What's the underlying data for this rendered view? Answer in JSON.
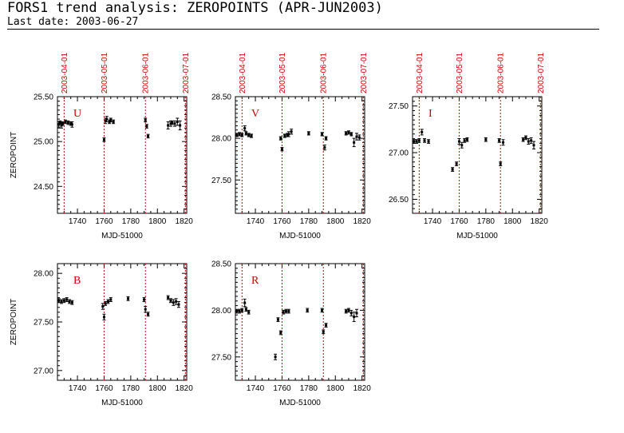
{
  "header": {
    "title": "FORS1 trend analysis: ZEROPOINTS (APR-JUN2003)",
    "last_date": "Last date: 2003-06-27"
  },
  "colors": {
    "frame": "#000000",
    "marker": "#cc0000",
    "points": "#000000"
  },
  "chart_data": [
    {
      "type": "scatter",
      "filter_label": "U",
      "xlabel": "MJD-51000",
      "ylabel": "ZEROPOINT",
      "xlim": [
        1725,
        1822
      ],
      "ylim": [
        24.2,
        25.5
      ],
      "yticks": [
        24.5,
        25.0,
        25.5
      ],
      "ytick_labels": [
        "24.50",
        "25.00",
        "25.50"
      ],
      "xticks": [
        1740,
        1760,
        1780,
        1800,
        1820
      ],
      "xtick_labels": [
        "1740",
        "1760",
        "1780",
        "1800",
        "1820"
      ],
      "date_markers": [
        {
          "x": 1730,
          "label": "2003-04-01"
        },
        {
          "x": 1760,
          "label": "2003-05-01"
        },
        {
          "x": 1791,
          "label": "2003-06-01"
        },
        {
          "x": 1821,
          "label": "2003-07-01"
        }
      ],
      "points": [
        {
          "x": 1726,
          "y": 25.19,
          "e": 0.03
        },
        {
          "x": 1727,
          "y": 25.21,
          "e": 0.02
        },
        {
          "x": 1728,
          "y": 25.18,
          "e": 0.03
        },
        {
          "x": 1729,
          "y": 25.2,
          "e": 0.02
        },
        {
          "x": 1731,
          "y": 25.22,
          "e": 0.02
        },
        {
          "x": 1733,
          "y": 25.21,
          "e": 0.02
        },
        {
          "x": 1735,
          "y": 25.2,
          "e": 0.02
        },
        {
          "x": 1736,
          "y": 25.19,
          "e": 0.03
        },
        {
          "x": 1760,
          "y": 25.02,
          "e": 0.02
        },
        {
          "x": 1761,
          "y": 25.23,
          "e": 0.03
        },
        {
          "x": 1762,
          "y": 25.25,
          "e": 0.03
        },
        {
          "x": 1764,
          "y": 25.22,
          "e": 0.02
        },
        {
          "x": 1765,
          "y": 25.24,
          "e": 0.02
        },
        {
          "x": 1767,
          "y": 25.22,
          "e": 0.02
        },
        {
          "x": 1791,
          "y": 25.24,
          "e": 0.02
        },
        {
          "x": 1792,
          "y": 25.17,
          "e": 0.02
        },
        {
          "x": 1793,
          "y": 25.06,
          "e": 0.02
        },
        {
          "x": 1808,
          "y": 25.18,
          "e": 0.04
        },
        {
          "x": 1810,
          "y": 25.2,
          "e": 0.03
        },
        {
          "x": 1811,
          "y": 25.21,
          "e": 0.02
        },
        {
          "x": 1813,
          "y": 25.2,
          "e": 0.03
        },
        {
          "x": 1815,
          "y": 25.22,
          "e": 0.04
        },
        {
          "x": 1817,
          "y": 25.18,
          "e": 0.05
        }
      ]
    },
    {
      "type": "scatter",
      "filter_label": "V",
      "xlabel": "MJD-51000",
      "ylabel": "",
      "xlim": [
        1725,
        1822
      ],
      "ylim": [
        27.1,
        28.5
      ],
      "yticks": [
        27.5,
        28.0,
        28.5
      ],
      "ytick_labels": [
        "27.50",
        "28.00",
        "28.50"
      ],
      "xticks": [
        1740,
        1760,
        1780,
        1800,
        1820
      ],
      "xtick_labels": [
        "1740",
        "1760",
        "1780",
        "1800",
        "1820"
      ],
      "date_markers": [
        {
          "x": 1730,
          "label": "2003-04-01"
        },
        {
          "x": 1760,
          "label": "2003-05-01"
        },
        {
          "x": 1791,
          "label": "2003-06-01"
        },
        {
          "x": 1821,
          "label": "2003-07-01"
        }
      ],
      "points": [
        {
          "x": 1726,
          "y": 28.04,
          "e": 0.02
        },
        {
          "x": 1728,
          "y": 28.05,
          "e": 0.02
        },
        {
          "x": 1730,
          "y": 28.04,
          "e": 0.02
        },
        {
          "x": 1732,
          "y": 28.12,
          "e": 0.03
        },
        {
          "x": 1733,
          "y": 28.06,
          "e": 0.02
        },
        {
          "x": 1735,
          "y": 28.04,
          "e": 0.02
        },
        {
          "x": 1737,
          "y": 28.03,
          "e": 0.02
        },
        {
          "x": 1759,
          "y": 28.0,
          "e": 0.02
        },
        {
          "x": 1760,
          "y": 27.87,
          "e": 0.02
        },
        {
          "x": 1762,
          "y": 28.03,
          "e": 0.02
        },
        {
          "x": 1764,
          "y": 28.04,
          "e": 0.02
        },
        {
          "x": 1765,
          "y": 28.05,
          "e": 0.03
        },
        {
          "x": 1767,
          "y": 28.08,
          "e": 0.03
        },
        {
          "x": 1780,
          "y": 28.06,
          "e": 0.02
        },
        {
          "x": 1790,
          "y": 28.05,
          "e": 0.02
        },
        {
          "x": 1792,
          "y": 27.89,
          "e": 0.03
        },
        {
          "x": 1793,
          "y": 28.0,
          "e": 0.02
        },
        {
          "x": 1808,
          "y": 28.06,
          "e": 0.02
        },
        {
          "x": 1810,
          "y": 28.07,
          "e": 0.02
        },
        {
          "x": 1812,
          "y": 28.05,
          "e": 0.02
        },
        {
          "x": 1814,
          "y": 27.95,
          "e": 0.05
        },
        {
          "x": 1816,
          "y": 28.02,
          "e": 0.04
        },
        {
          "x": 1818,
          "y": 28.01,
          "e": 0.03
        }
      ]
    },
    {
      "type": "scatter",
      "filter_label": "I",
      "xlabel": "MJD-51000",
      "ylabel": "",
      "xlim": [
        1725,
        1822
      ],
      "ylim": [
        26.35,
        27.6
      ],
      "yticks": [
        26.5,
        27.0,
        27.5
      ],
      "ytick_labels": [
        "26.50",
        "27.00",
        "27.50"
      ],
      "xticks": [
        1740,
        1760,
        1780,
        1800,
        1820
      ],
      "xtick_labels": [
        "1740",
        "1760",
        "1780",
        "1800",
        "1820"
      ],
      "date_markers": [
        {
          "x": 1730,
          "label": "2003-04-01"
        },
        {
          "x": 1760,
          "label": "2003-05-01"
        },
        {
          "x": 1791,
          "label": "2003-06-01"
        },
        {
          "x": 1821,
          "label": "2003-07-01"
        }
      ],
      "points": [
        {
          "x": 1726,
          "y": 27.12,
          "e": 0.02
        },
        {
          "x": 1728,
          "y": 27.12,
          "e": 0.02
        },
        {
          "x": 1730,
          "y": 27.13,
          "e": 0.02
        },
        {
          "x": 1732,
          "y": 27.22,
          "e": 0.03
        },
        {
          "x": 1734,
          "y": 27.13,
          "e": 0.02
        },
        {
          "x": 1737,
          "y": 27.12,
          "e": 0.02
        },
        {
          "x": 1755,
          "y": 26.82,
          "e": 0.02
        },
        {
          "x": 1758,
          "y": 26.88,
          "e": 0.02
        },
        {
          "x": 1760,
          "y": 27.12,
          "e": 0.03
        },
        {
          "x": 1762,
          "y": 27.08,
          "e": 0.03
        },
        {
          "x": 1764,
          "y": 27.13,
          "e": 0.02
        },
        {
          "x": 1766,
          "y": 27.14,
          "e": 0.02
        },
        {
          "x": 1780,
          "y": 27.14,
          "e": 0.02
        },
        {
          "x": 1790,
          "y": 27.13,
          "e": 0.02
        },
        {
          "x": 1791,
          "y": 26.88,
          "e": 0.02
        },
        {
          "x": 1793,
          "y": 27.11,
          "e": 0.03
        },
        {
          "x": 1808,
          "y": 27.14,
          "e": 0.02
        },
        {
          "x": 1810,
          "y": 27.16,
          "e": 0.02
        },
        {
          "x": 1812,
          "y": 27.12,
          "e": 0.03
        },
        {
          "x": 1814,
          "y": 27.13,
          "e": 0.03
        },
        {
          "x": 1816,
          "y": 27.08,
          "e": 0.04
        }
      ]
    },
    {
      "type": "scatter",
      "filter_label": "B",
      "xlabel": "MJD-51000",
      "ylabel": "ZEROPOINT",
      "xlim": [
        1725,
        1822
      ],
      "ylim": [
        26.9,
        28.1
      ],
      "yticks": [
        27.0,
        27.5,
        28.0
      ],
      "ytick_labels": [
        "27.00",
        "27.50",
        "28.00"
      ],
      "xticks": [
        1740,
        1760,
        1780,
        1800,
        1820
      ],
      "xtick_labels": [
        "1740",
        "1760",
        "1780",
        "1800",
        "1820"
      ],
      "date_markers": [
        {
          "x": 1760,
          "label": ""
        },
        {
          "x": 1791,
          "label": ""
        },
        {
          "x": 1821,
          "label": ""
        }
      ],
      "points": [
        {
          "x": 1726,
          "y": 27.72,
          "e": 0.02
        },
        {
          "x": 1728,
          "y": 27.71,
          "e": 0.02
        },
        {
          "x": 1730,
          "y": 27.72,
          "e": 0.02
        },
        {
          "x": 1732,
          "y": 27.73,
          "e": 0.02
        },
        {
          "x": 1734,
          "y": 27.71,
          "e": 0.02
        },
        {
          "x": 1736,
          "y": 27.7,
          "e": 0.02
        },
        {
          "x": 1759,
          "y": 27.66,
          "e": 0.03
        },
        {
          "x": 1760,
          "y": 27.55,
          "e": 0.03
        },
        {
          "x": 1761,
          "y": 27.69,
          "e": 0.02
        },
        {
          "x": 1763,
          "y": 27.71,
          "e": 0.02
        },
        {
          "x": 1765,
          "y": 27.73,
          "e": 0.02
        },
        {
          "x": 1778,
          "y": 27.74,
          "e": 0.02
        },
        {
          "x": 1790,
          "y": 27.73,
          "e": 0.02
        },
        {
          "x": 1791,
          "y": 27.63,
          "e": 0.03
        },
        {
          "x": 1793,
          "y": 27.58,
          "e": 0.02
        },
        {
          "x": 1808,
          "y": 27.75,
          "e": 0.02
        },
        {
          "x": 1810,
          "y": 27.72,
          "e": 0.02
        },
        {
          "x": 1812,
          "y": 27.7,
          "e": 0.03
        },
        {
          "x": 1814,
          "y": 27.71,
          "e": 0.03
        },
        {
          "x": 1816,
          "y": 27.68,
          "e": 0.03
        }
      ]
    },
    {
      "type": "scatter",
      "filter_label": "R",
      "xlabel": "MJD-51000",
      "ylabel": "",
      "xlim": [
        1725,
        1822
      ],
      "ylim": [
        27.25,
        28.5
      ],
      "yticks": [
        27.5,
        28.0,
        28.5
      ],
      "ytick_labels": [
        "27.50",
        "28.00",
        "28.50"
      ],
      "xticks": [
        1740,
        1760,
        1780,
        1800,
        1820
      ],
      "xtick_labels": [
        "1740",
        "1760",
        "1780",
        "1800",
        "1820"
      ],
      "date_markers": [
        {
          "x": 1730,
          "label": ""
        },
        {
          "x": 1760,
          "label": ""
        },
        {
          "x": 1791,
          "label": ""
        },
        {
          "x": 1821,
          "label": ""
        }
      ],
      "points": [
        {
          "x": 1726,
          "y": 27.99,
          "e": 0.02
        },
        {
          "x": 1728,
          "y": 27.99,
          "e": 0.02
        },
        {
          "x": 1730,
          "y": 28.0,
          "e": 0.02
        },
        {
          "x": 1732,
          "y": 28.08,
          "e": 0.04
        },
        {
          "x": 1733,
          "y": 28.01,
          "e": 0.02
        },
        {
          "x": 1735,
          "y": 27.98,
          "e": 0.02
        },
        {
          "x": 1755,
          "y": 27.5,
          "e": 0.03
        },
        {
          "x": 1757,
          "y": 27.9,
          "e": 0.02
        },
        {
          "x": 1759,
          "y": 27.76,
          "e": 0.02
        },
        {
          "x": 1761,
          "y": 27.98,
          "e": 0.02
        },
        {
          "x": 1763,
          "y": 27.99,
          "e": 0.02
        },
        {
          "x": 1765,
          "y": 27.99,
          "e": 0.02
        },
        {
          "x": 1779,
          "y": 28.0,
          "e": 0.02
        },
        {
          "x": 1790,
          "y": 28.0,
          "e": 0.02
        },
        {
          "x": 1791,
          "y": 27.77,
          "e": 0.02
        },
        {
          "x": 1793,
          "y": 27.84,
          "e": 0.02
        },
        {
          "x": 1808,
          "y": 27.99,
          "e": 0.02
        },
        {
          "x": 1810,
          "y": 28.0,
          "e": 0.02
        },
        {
          "x": 1812,
          "y": 27.97,
          "e": 0.03
        },
        {
          "x": 1814,
          "y": 27.93,
          "e": 0.05
        },
        {
          "x": 1816,
          "y": 27.97,
          "e": 0.04
        }
      ]
    }
  ]
}
